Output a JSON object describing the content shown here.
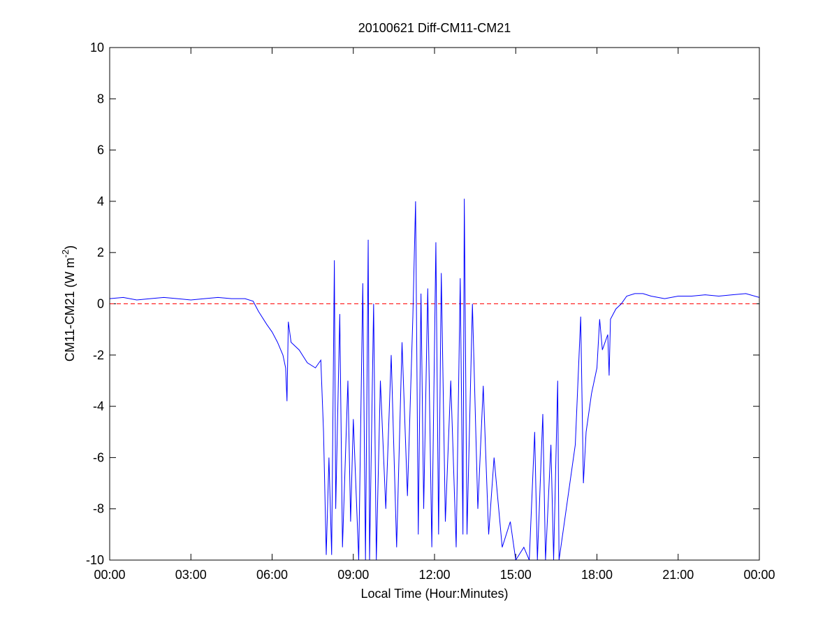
{
  "chart_data": {
    "type": "line",
    "title": "20100621 Diff-CM11-CM21",
    "xlabel": "Local Time (Hour:Minutes)",
    "ylabel": {
      "text": "CM11-CM21 (W m",
      "sup": "-2",
      "tail": ")"
    },
    "xlim": [
      0,
      24
    ],
    "xticks": [
      {
        "value": 0,
        "label": "00:00"
      },
      {
        "value": 3,
        "label": "03:00"
      },
      {
        "value": 6,
        "label": "06:00"
      },
      {
        "value": 9,
        "label": "09:00"
      },
      {
        "value": 12,
        "label": "12:00"
      },
      {
        "value": 15,
        "label": "15:00"
      },
      {
        "value": 18,
        "label": "18:00"
      },
      {
        "value": 21,
        "label": "21:00"
      },
      {
        "value": 24,
        "label": "00:00"
      }
    ],
    "ylim": [
      -10,
      10
    ],
    "yticks": [
      -10,
      -8,
      -6,
      -4,
      -2,
      0,
      2,
      4,
      6,
      8,
      10
    ],
    "reference_line": {
      "value": 0,
      "color": "#ff0000",
      "style": "dashed"
    },
    "series": [
      {
        "color": "#0000ff",
        "x": [
          0,
          0.5,
          1,
          1.5,
          2,
          2.5,
          3,
          3.5,
          4,
          4.5,
          5,
          5.3,
          5.5,
          5.8,
          6.0,
          6.2,
          6.4,
          6.5,
          6.55,
          6.6,
          6.7,
          7.0,
          7.3,
          7.6,
          7.8,
          7.9,
          8.0,
          8.1,
          8.2,
          8.3,
          8.35,
          8.5,
          8.6,
          8.8,
          8.9,
          9.0,
          9.2,
          9.35,
          9.45,
          9.55,
          9.6,
          9.75,
          9.85,
          10.0,
          10.2,
          10.4,
          10.6,
          10.8,
          11.0,
          11.2,
          11.3,
          11.4,
          11.5,
          11.6,
          11.75,
          11.9,
          12.05,
          12.15,
          12.25,
          12.4,
          12.6,
          12.8,
          12.95,
          13.05,
          13.1,
          13.2,
          13.4,
          13.6,
          13.8,
          14.0,
          14.2,
          14.5,
          14.8,
          15.0,
          15.3,
          15.5,
          15.7,
          15.8,
          16.0,
          16.1,
          16.3,
          16.4,
          16.55,
          16.6,
          16.8,
          17.0,
          17.2,
          17.4,
          17.5,
          17.6,
          17.8,
          18.0,
          18.1,
          18.2,
          18.4,
          18.45,
          18.5,
          18.7,
          18.9,
          19.1,
          19.4,
          19.7,
          20.0,
          20.5,
          21,
          21.5,
          22,
          22.5,
          23,
          23.5,
          24
        ],
        "values": [
          0.2,
          0.25,
          0.15,
          0.2,
          0.25,
          0.2,
          0.15,
          0.2,
          0.25,
          0.2,
          0.2,
          0.1,
          -0.3,
          -0.8,
          -1.1,
          -1.5,
          -2.0,
          -2.5,
          -3.8,
          -0.7,
          -1.5,
          -1.8,
          -2.3,
          -2.5,
          -2.2,
          -5.0,
          -9.8,
          -6,
          -9.8,
          1.7,
          -8,
          -0.4,
          -9.5,
          -3,
          -8.5,
          -4.5,
          -10,
          0.8,
          -10,
          2.5,
          -10,
          0.0,
          -10,
          -3,
          -8,
          -2,
          -9.5,
          -1.5,
          -7.5,
          -0.5,
          4.0,
          -9,
          0.4,
          -8,
          0.6,
          -9.5,
          2.4,
          -9,
          1.2,
          -8.5,
          -3,
          -9.5,
          1.0,
          -9,
          4.1,
          -9,
          0.0,
          -8,
          -3.2,
          -9,
          -6,
          -9.5,
          -8.5,
          -10,
          -9.5,
          -10,
          -5,
          -10,
          -4.3,
          -10,
          -5.5,
          -10,
          -3,
          -10,
          -8.5,
          -7,
          -5.5,
          -0.5,
          -7,
          -5,
          -3.5,
          -2.5,
          -0.6,
          -1.8,
          -1.2,
          -2.8,
          -0.6,
          -0.2,
          0.0,
          0.3,
          0.4,
          0.4,
          0.3,
          0.2,
          0.3,
          0.3,
          0.35,
          0.3,
          0.35,
          0.4,
          0.25
        ]
      }
    ]
  }
}
